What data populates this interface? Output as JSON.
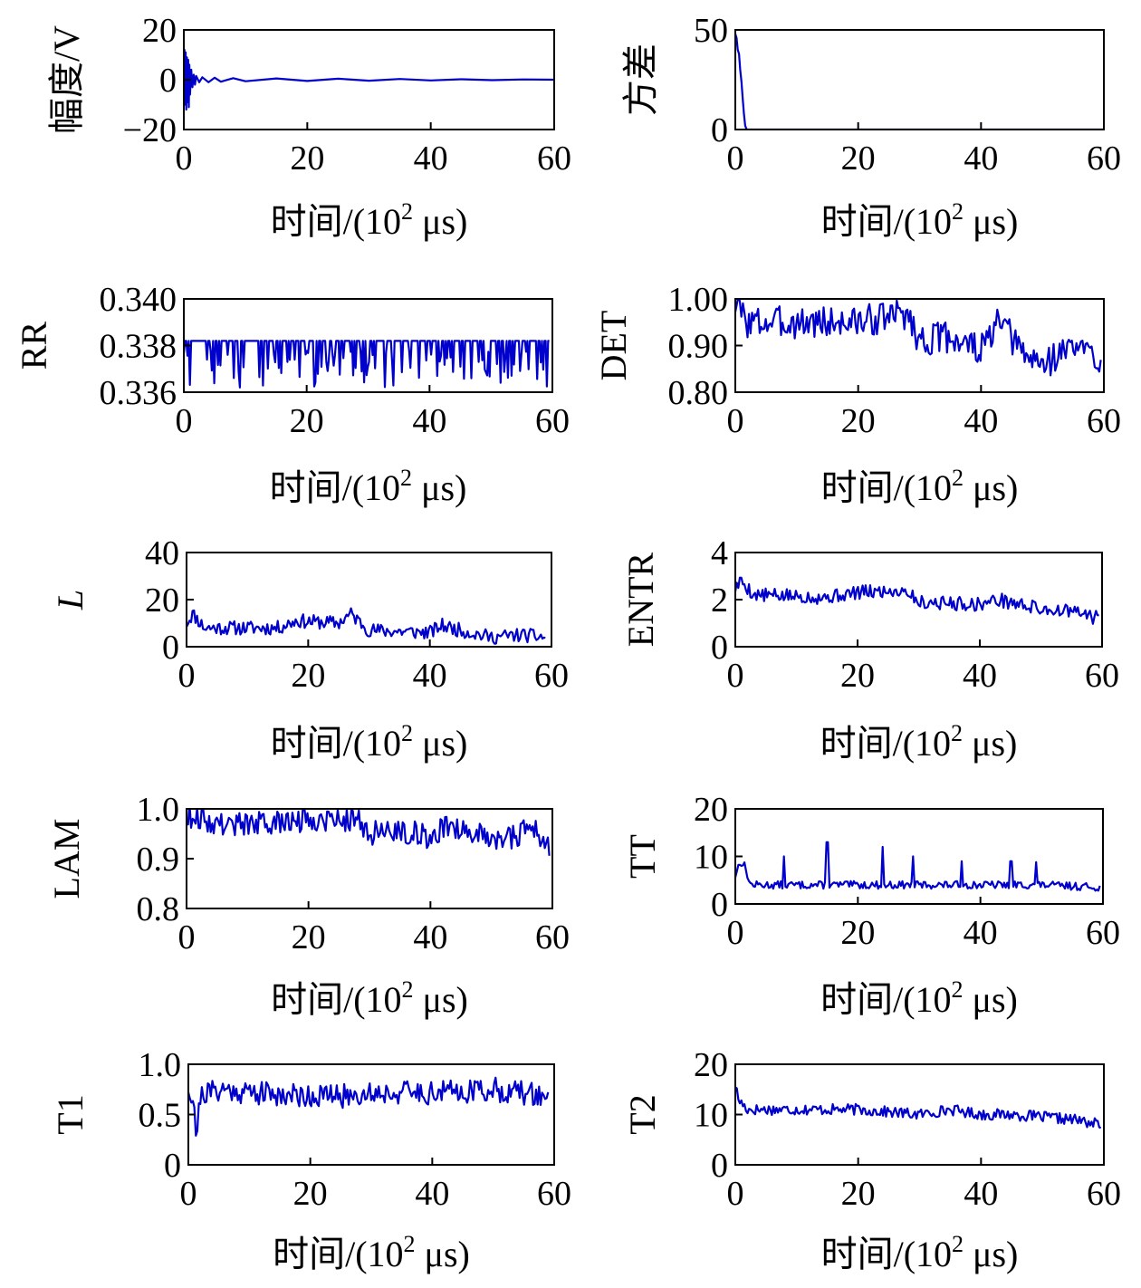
{
  "figure": {
    "line_color": "#0000CC",
    "x_axis_title": "时间/(10² μs)"
  },
  "chart_data": [
    {
      "id": "amplitude",
      "type": "line",
      "ylabel": "幅度/V",
      "ylabel_italic": false,
      "xlabel": "时间/(10² μs)",
      "xlim": [
        0,
        60
      ],
      "ylim": [
        -20,
        20
      ],
      "xticks": [
        0,
        20,
        40,
        60
      ],
      "yticks": [
        -20,
        0,
        20
      ],
      "ytick_labels": [
        "−20",
        "0",
        "20"
      ],
      "xtick_labels": [
        "0",
        "20",
        "40",
        "60"
      ],
      "grid": false,
      "legend": "none",
      "pattern": "decay",
      "points": [
        [
          0,
          0
        ],
        [
          0.1,
          12
        ],
        [
          0.2,
          -10
        ],
        [
          0.3,
          11
        ],
        [
          0.4,
          -12
        ],
        [
          0.5,
          9
        ],
        [
          0.6,
          -9
        ],
        [
          0.7,
          8
        ],
        [
          0.8,
          -11
        ],
        [
          0.9,
          6
        ],
        [
          1.0,
          -6
        ],
        [
          1.2,
          4
        ],
        [
          1.4,
          -3
        ],
        [
          1.6,
          2
        ],
        [
          1.8,
          -2
        ],
        [
          2,
          1.5
        ],
        [
          2.5,
          -1
        ],
        [
          3,
          1
        ],
        [
          4,
          -1
        ],
        [
          5,
          0.8
        ],
        [
          6,
          -0.8
        ],
        [
          8,
          0.6
        ],
        [
          10,
          -0.6
        ],
        [
          15,
          0.5
        ],
        [
          20,
          -0.5
        ],
        [
          25,
          0.4
        ],
        [
          30,
          -0.4
        ],
        [
          35,
          0.3
        ],
        [
          40,
          -0.3
        ],
        [
          45,
          0.2
        ],
        [
          50,
          -0.2
        ],
        [
          55,
          0.1
        ],
        [
          60,
          0
        ]
      ]
    },
    {
      "id": "variance",
      "type": "line",
      "ylabel": "方差",
      "ylabel_italic": false,
      "xlabel": "时间/(10² μs)",
      "xlim": [
        0,
        60
      ],
      "ylim": [
        0,
        50
      ],
      "xticks": [
        0,
        20,
        40,
        60
      ],
      "yticks": [
        0,
        50
      ],
      "ytick_labels": [
        "0",
        "50"
      ],
      "xtick_labels": [
        "0",
        "20",
        "40",
        "60"
      ],
      "grid": false,
      "legend": "none",
      "points": [
        [
          0,
          48
        ],
        [
          0.2,
          46
        ],
        [
          0.4,
          40
        ],
        [
          0.6,
          38
        ],
        [
          0.8,
          30
        ],
        [
          1.0,
          24
        ],
        [
          1.2,
          16
        ],
        [
          1.4,
          8
        ],
        [
          1.6,
          2
        ],
        [
          1.8,
          0.3
        ],
        [
          2,
          0
        ],
        [
          60,
          0
        ]
      ]
    },
    {
      "id": "RR",
      "type": "line",
      "ylabel": "RR",
      "ylabel_italic": false,
      "xlabel": "时间/(10² μs)",
      "xlim": [
        0,
        60
      ],
      "ylim": [
        0.336,
        0.34
      ],
      "xticks": [
        0,
        20,
        40,
        60
      ],
      "yticks": [
        0.336,
        0.338,
        0.34
      ],
      "ytick_labels": [
        "0.336",
        "0.338",
        "0.340"
      ],
      "xtick_labels": [
        "0",
        "20",
        "40",
        "60"
      ],
      "grid": false,
      "legend": "none",
      "pattern": "spikes",
      "range": [
        0,
        59.5
      ],
      "n": 300,
      "base": 0.3382,
      "drop_low": 0.3362,
      "drop_high": 0.3378,
      "seed": 7
    },
    {
      "id": "DET",
      "type": "line",
      "ylabel": "DET",
      "ylabel_italic": false,
      "xlabel": "时间/(10² μs)",
      "xlim": [
        0,
        60
      ],
      "ylim": [
        0.8,
        1.0
      ],
      "xticks": [
        0,
        20,
        40,
        60
      ],
      "yticks": [
        0.8,
        0.9,
        1.0
      ],
      "ytick_labels": [
        "0.80",
        "0.90",
        "1.00"
      ],
      "xtick_labels": [
        "0",
        "20",
        "40",
        "60"
      ],
      "grid": false,
      "legend": "none",
      "pattern": "noisy",
      "range": [
        0,
        59.5
      ],
      "n": 240,
      "anchors": [
        [
          0,
          0.99
        ],
        [
          2,
          0.95
        ],
        [
          10,
          0.95
        ],
        [
          20,
          0.95
        ],
        [
          28,
          0.97
        ],
        [
          30,
          0.91
        ],
        [
          35,
          0.92
        ],
        [
          40,
          0.89
        ],
        [
          43,
          0.95
        ],
        [
          47,
          0.88
        ],
        [
          50,
          0.86
        ],
        [
          55,
          0.9
        ],
        [
          59.5,
          0.87
        ]
      ],
      "noise": 0.035,
      "seed": 3
    },
    {
      "id": "L",
      "type": "line",
      "ylabel": "L",
      "ylabel_italic": true,
      "xlabel": "时间/(10² μs)",
      "xlim": [
        0,
        60
      ],
      "ylim": [
        0,
        40
      ],
      "xticks": [
        0,
        20,
        40,
        60
      ],
      "yticks": [
        0,
        20,
        40
      ],
      "ytick_labels": [
        "0",
        "20",
        "40"
      ],
      "xtick_labels": [
        "0",
        "20",
        "40",
        "60"
      ],
      "grid": false,
      "legend": "none",
      "pattern": "noisy",
      "range": [
        0,
        59
      ],
      "n": 240,
      "anchors": [
        [
          0,
          10
        ],
        [
          1,
          14
        ],
        [
          3,
          8
        ],
        [
          10,
          8
        ],
        [
          15,
          8
        ],
        [
          18,
          11
        ],
        [
          25,
          10
        ],
        [
          27,
          14
        ],
        [
          30,
          7
        ],
        [
          40,
          6
        ],
        [
          42,
          9
        ],
        [
          45,
          7
        ],
        [
          50,
          4
        ],
        [
          55,
          5
        ],
        [
          59,
          4
        ]
      ],
      "noise": 3.0,
      "seed": 11
    },
    {
      "id": "ENTR",
      "type": "line",
      "ylabel": "ENTR",
      "ylabel_italic": false,
      "xlabel": "时间/(10² μs)",
      "xlim": [
        0,
        60
      ],
      "ylim": [
        0,
        4
      ],
      "xticks": [
        0,
        20,
        40,
        60
      ],
      "yticks": [
        0,
        2,
        4
      ],
      "ytick_labels": [
        "0",
        "2",
        "4"
      ],
      "xtick_labels": [
        "0",
        "20",
        "40",
        "60"
      ],
      "grid": false,
      "legend": "none",
      "pattern": "noisy",
      "range": [
        0,
        59.5
      ],
      "n": 240,
      "anchors": [
        [
          0,
          2.5
        ],
        [
          1,
          2.8
        ],
        [
          3,
          2.2
        ],
        [
          15,
          2.1
        ],
        [
          20,
          2.3
        ],
        [
          28,
          2.4
        ],
        [
          30,
          1.9
        ],
        [
          40,
          1.8
        ],
        [
          43,
          2.0
        ],
        [
          50,
          1.6
        ],
        [
          55,
          1.5
        ],
        [
          59.5,
          1.2
        ]
      ],
      "noise": 0.3,
      "seed": 5
    },
    {
      "id": "LAM",
      "type": "line",
      "ylabel": "LAM",
      "ylabel_italic": false,
      "xlabel": "时间/(10² μs)",
      "xlim": [
        0,
        60
      ],
      "ylim": [
        0.8,
        1.0
      ],
      "xticks": [
        0,
        20,
        40,
        60
      ],
      "yticks": [
        0.8,
        0.9,
        1.0
      ],
      "ytick_labels": [
        "0.8",
        "0.9",
        "1.0"
      ],
      "xtick_labels": [
        "0",
        "20",
        "40",
        "60"
      ],
      "grid": false,
      "legend": "none",
      "pattern": "noisy",
      "range": [
        0,
        59.5
      ],
      "n": 240,
      "anchors": [
        [
          0,
          0.99
        ],
        [
          5,
          0.97
        ],
        [
          15,
          0.97
        ],
        [
          20,
          0.98
        ],
        [
          28,
          0.98
        ],
        [
          30,
          0.95
        ],
        [
          35,
          0.96
        ],
        [
          40,
          0.94
        ],
        [
          43,
          0.97
        ],
        [
          48,
          0.95
        ],
        [
          52,
          0.94
        ],
        [
          57,
          0.96
        ],
        [
          59.5,
          0.92
        ]
      ],
      "noise": 0.025,
      "seed": 9
    },
    {
      "id": "TT",
      "type": "line",
      "ylabel": "TT",
      "ylabel_italic": false,
      "xlabel": "时间/(10² μs)",
      "xlim": [
        0,
        60
      ],
      "ylim": [
        0,
        20
      ],
      "xticks": [
        0,
        20,
        40,
        60
      ],
      "yticks": [
        0,
        10,
        20
      ],
      "ytick_labels": [
        "0",
        "10",
        "20"
      ],
      "xtick_labels": [
        "0",
        "20",
        "40",
        "60"
      ],
      "grid": false,
      "legend": "none",
      "pattern": "noisy",
      "range": [
        0,
        59.5
      ],
      "n": 240,
      "anchors": [
        [
          0,
          6
        ],
        [
          0.8,
          9
        ],
        [
          1.5,
          8
        ],
        [
          2.5,
          4
        ],
        [
          10,
          4
        ],
        [
          20,
          4
        ],
        [
          30,
          4
        ],
        [
          40,
          4
        ],
        [
          50,
          4
        ],
        [
          59.5,
          3.5
        ]
      ],
      "noise": 0.8,
      "spikes": [
        [
          8,
          6
        ],
        [
          15,
          9
        ],
        [
          24,
          8
        ],
        [
          29,
          6
        ],
        [
          37,
          5
        ],
        [
          45,
          5
        ],
        [
          49,
          4.8
        ]
      ],
      "seed": 13
    },
    {
      "id": "T1",
      "type": "line",
      "ylabel": "T1",
      "ylabel_italic": false,
      "xlabel": "时间/(10² μs)",
      "xlim": [
        0,
        60
      ],
      "ylim": [
        0,
        1.0
      ],
      "xticks": [
        0,
        20,
        40,
        60
      ],
      "yticks": [
        0,
        0.5,
        1.0
      ],
      "ytick_labels": [
        "0",
        "0.5",
        "1.0"
      ],
      "xtick_labels": [
        "0",
        "20",
        "40",
        "60"
      ],
      "grid": false,
      "legend": "none",
      "pattern": "noisy",
      "range": [
        0,
        59
      ],
      "n": 240,
      "anchors": [
        [
          0,
          0.78
        ],
        [
          1,
          0.6
        ],
        [
          1.3,
          0.25
        ],
        [
          2,
          0.7
        ],
        [
          5,
          0.75
        ],
        [
          15,
          0.7
        ],
        [
          25,
          0.68
        ],
        [
          30,
          0.72
        ],
        [
          40,
          0.72
        ],
        [
          50,
          0.75
        ],
        [
          59,
          0.68
        ]
      ],
      "noise": 0.12,
      "seed": 21
    },
    {
      "id": "T2",
      "type": "line",
      "ylabel": "T2",
      "ylabel_italic": false,
      "xlabel": "时间/(10² μs)",
      "xlim": [
        0,
        60
      ],
      "ylim": [
        0,
        20
      ],
      "xticks": [
        0,
        20,
        40,
        60
      ],
      "yticks": [
        0,
        10,
        20
      ],
      "ytick_labels": [
        "0",
        "10",
        "20"
      ],
      "xtick_labels": [
        "0",
        "20",
        "40",
        "60"
      ],
      "grid": false,
      "legend": "none",
      "pattern": "noisy",
      "range": [
        0,
        59.5
      ],
      "n": 240,
      "anchors": [
        [
          0,
          16
        ],
        [
          0.5,
          13
        ],
        [
          2,
          11
        ],
        [
          10,
          11
        ],
        [
          20,
          11
        ],
        [
          30,
          10
        ],
        [
          35,
          11
        ],
        [
          40,
          10
        ],
        [
          45,
          10
        ],
        [
          50,
          9.5
        ],
        [
          55,
          9
        ],
        [
          59.5,
          8
        ]
      ],
      "noise": 1.1,
      "seed": 17
    }
  ]
}
